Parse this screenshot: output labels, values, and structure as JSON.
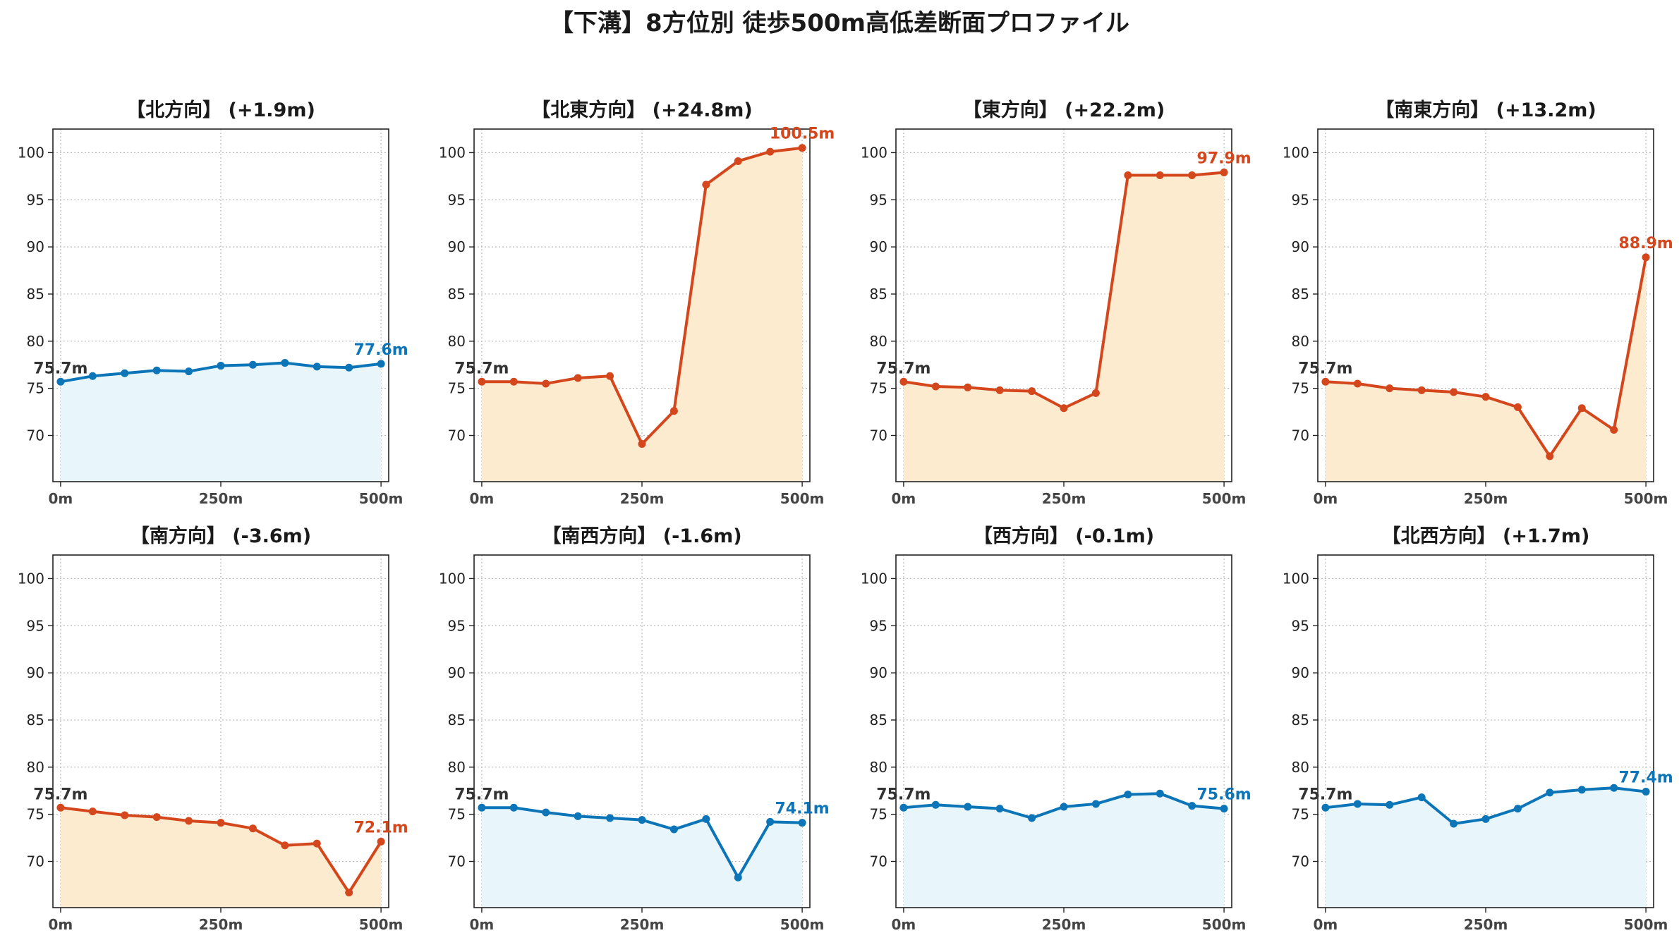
{
  "figure_title": "【下溝】8方位別 徒歩500m高低差断面プロファイル",
  "colors": {
    "up_line": "#d4471d",
    "up_fill": "#fdebd0",
    "flat_line": "#0b75b8",
    "flat_fill": "#e8f6fb"
  },
  "chart_data": [
    {
      "type": "area",
      "title": "【北方向】 (+1.9m)",
      "color_scheme": "flat",
      "x": [
        0,
        50,
        100,
        150,
        200,
        250,
        300,
        350,
        400,
        450,
        500
      ],
      "y": [
        75.7,
        76.3,
        76.6,
        76.9,
        76.8,
        77.4,
        77.5,
        77.7,
        77.3,
        77.2,
        77.6
      ],
      "start_label": "75.7m",
      "end_label": "77.6m",
      "xticks": [
        0,
        250,
        500
      ],
      "xtick_labels": [
        "0m",
        "250m",
        "500m"
      ],
      "yticks": [
        70,
        75,
        80,
        85,
        90,
        95,
        100
      ],
      "ylim": [
        65.1,
        102.5
      ],
      "xlim": [
        -12,
        512
      ],
      "grid": true
    },
    {
      "type": "area",
      "title": "【北東方向】 (+24.8m)",
      "color_scheme": "up",
      "x": [
        0,
        50,
        100,
        150,
        200,
        250,
        300,
        350,
        400,
        450,
        500
      ],
      "y": [
        75.7,
        75.7,
        75.5,
        76.1,
        76.3,
        69.1,
        72.6,
        96.6,
        99.1,
        100.1,
        100.5
      ],
      "start_label": "75.7m",
      "end_label": "100.5m",
      "xticks": [
        0,
        250,
        500
      ],
      "xtick_labels": [
        "0m",
        "250m",
        "500m"
      ],
      "yticks": [
        70,
        75,
        80,
        85,
        90,
        95,
        100
      ],
      "ylim": [
        65.1,
        102.5
      ],
      "xlim": [
        -12,
        512
      ],
      "grid": true
    },
    {
      "type": "area",
      "title": "【東方向】 (+22.2m)",
      "color_scheme": "up",
      "x": [
        0,
        50,
        100,
        150,
        200,
        250,
        300,
        350,
        400,
        450,
        500
      ],
      "y": [
        75.7,
        75.2,
        75.1,
        74.8,
        74.7,
        72.9,
        74.5,
        97.6,
        97.6,
        97.6,
        97.9
      ],
      "start_label": "75.7m",
      "end_label": "97.9m",
      "xticks": [
        0,
        250,
        500
      ],
      "xtick_labels": [
        "0m",
        "250m",
        "500m"
      ],
      "yticks": [
        70,
        75,
        80,
        85,
        90,
        95,
        100
      ],
      "ylim": [
        65.1,
        102.5
      ],
      "xlim": [
        -12,
        512
      ],
      "grid": true
    },
    {
      "type": "area",
      "title": "【南東方向】 (+13.2m)",
      "color_scheme": "up",
      "x": [
        0,
        50,
        100,
        150,
        200,
        250,
        300,
        350,
        400,
        450,
        500
      ],
      "y": [
        75.7,
        75.5,
        75.0,
        74.8,
        74.6,
        74.1,
        73.0,
        67.8,
        72.9,
        70.6,
        88.9
      ],
      "start_label": "75.7m",
      "end_label": "88.9m",
      "xticks": [
        0,
        250,
        500
      ],
      "xtick_labels": [
        "0m",
        "250m",
        "500m"
      ],
      "yticks": [
        70,
        75,
        80,
        85,
        90,
        95,
        100
      ],
      "ylim": [
        65.1,
        102.5
      ],
      "xlim": [
        -12,
        512
      ],
      "grid": true
    },
    {
      "type": "area",
      "title": "【南方向】 (-3.6m)",
      "color_scheme": "up",
      "x": [
        0,
        50,
        100,
        150,
        200,
        250,
        300,
        350,
        400,
        450,
        500
      ],
      "y": [
        75.7,
        75.3,
        74.9,
        74.7,
        74.3,
        74.1,
        73.5,
        71.7,
        71.9,
        66.7,
        72.1
      ],
      "start_label": "75.7m",
      "end_label": "72.1m",
      "xticks": [
        0,
        250,
        500
      ],
      "xtick_labels": [
        "0m",
        "250m",
        "500m"
      ],
      "yticks": [
        70,
        75,
        80,
        85,
        90,
        95,
        100
      ],
      "ylim": [
        65.1,
        102.5
      ],
      "xlim": [
        -12,
        512
      ],
      "grid": true
    },
    {
      "type": "area",
      "title": "【南西方向】 (-1.6m)",
      "color_scheme": "flat",
      "x": [
        0,
        50,
        100,
        150,
        200,
        250,
        300,
        350,
        400,
        450,
        500
      ],
      "y": [
        75.7,
        75.7,
        75.2,
        74.8,
        74.6,
        74.4,
        73.4,
        74.5,
        68.3,
        74.2,
        74.1
      ],
      "start_label": "75.7m",
      "end_label": "74.1m",
      "xticks": [
        0,
        250,
        500
      ],
      "xtick_labels": [
        "0m",
        "250m",
        "500m"
      ],
      "yticks": [
        70,
        75,
        80,
        85,
        90,
        95,
        100
      ],
      "ylim": [
        65.1,
        102.5
      ],
      "xlim": [
        -12,
        512
      ],
      "grid": true
    },
    {
      "type": "area",
      "title": "【西方向】 (-0.1m)",
      "color_scheme": "flat",
      "x": [
        0,
        50,
        100,
        150,
        200,
        250,
        300,
        350,
        400,
        450,
        500
      ],
      "y": [
        75.7,
        76.0,
        75.8,
        75.6,
        74.6,
        75.8,
        76.1,
        77.1,
        77.2,
        75.9,
        75.6
      ],
      "start_label": "75.7m",
      "end_label": "75.6m",
      "xticks": [
        0,
        250,
        500
      ],
      "xtick_labels": [
        "0m",
        "250m",
        "500m"
      ],
      "yticks": [
        70,
        75,
        80,
        85,
        90,
        95,
        100
      ],
      "ylim": [
        65.1,
        102.5
      ],
      "xlim": [
        -12,
        512
      ],
      "grid": true
    },
    {
      "type": "area",
      "title": "【北西方向】 (+1.7m)",
      "color_scheme": "flat",
      "x": [
        0,
        50,
        100,
        150,
        200,
        250,
        300,
        350,
        400,
        450,
        500
      ],
      "y": [
        75.7,
        76.1,
        76.0,
        76.8,
        74.0,
        74.5,
        75.6,
        77.3,
        77.6,
        77.8,
        77.4
      ],
      "start_label": "75.7m",
      "end_label": "77.4m",
      "xticks": [
        0,
        250,
        500
      ],
      "xtick_labels": [
        "0m",
        "250m",
        "500m"
      ],
      "yticks": [
        70,
        75,
        80,
        85,
        90,
        95,
        100
      ],
      "ylim": [
        65.1,
        102.5
      ],
      "xlim": [
        -12,
        512
      ],
      "grid": true
    }
  ]
}
